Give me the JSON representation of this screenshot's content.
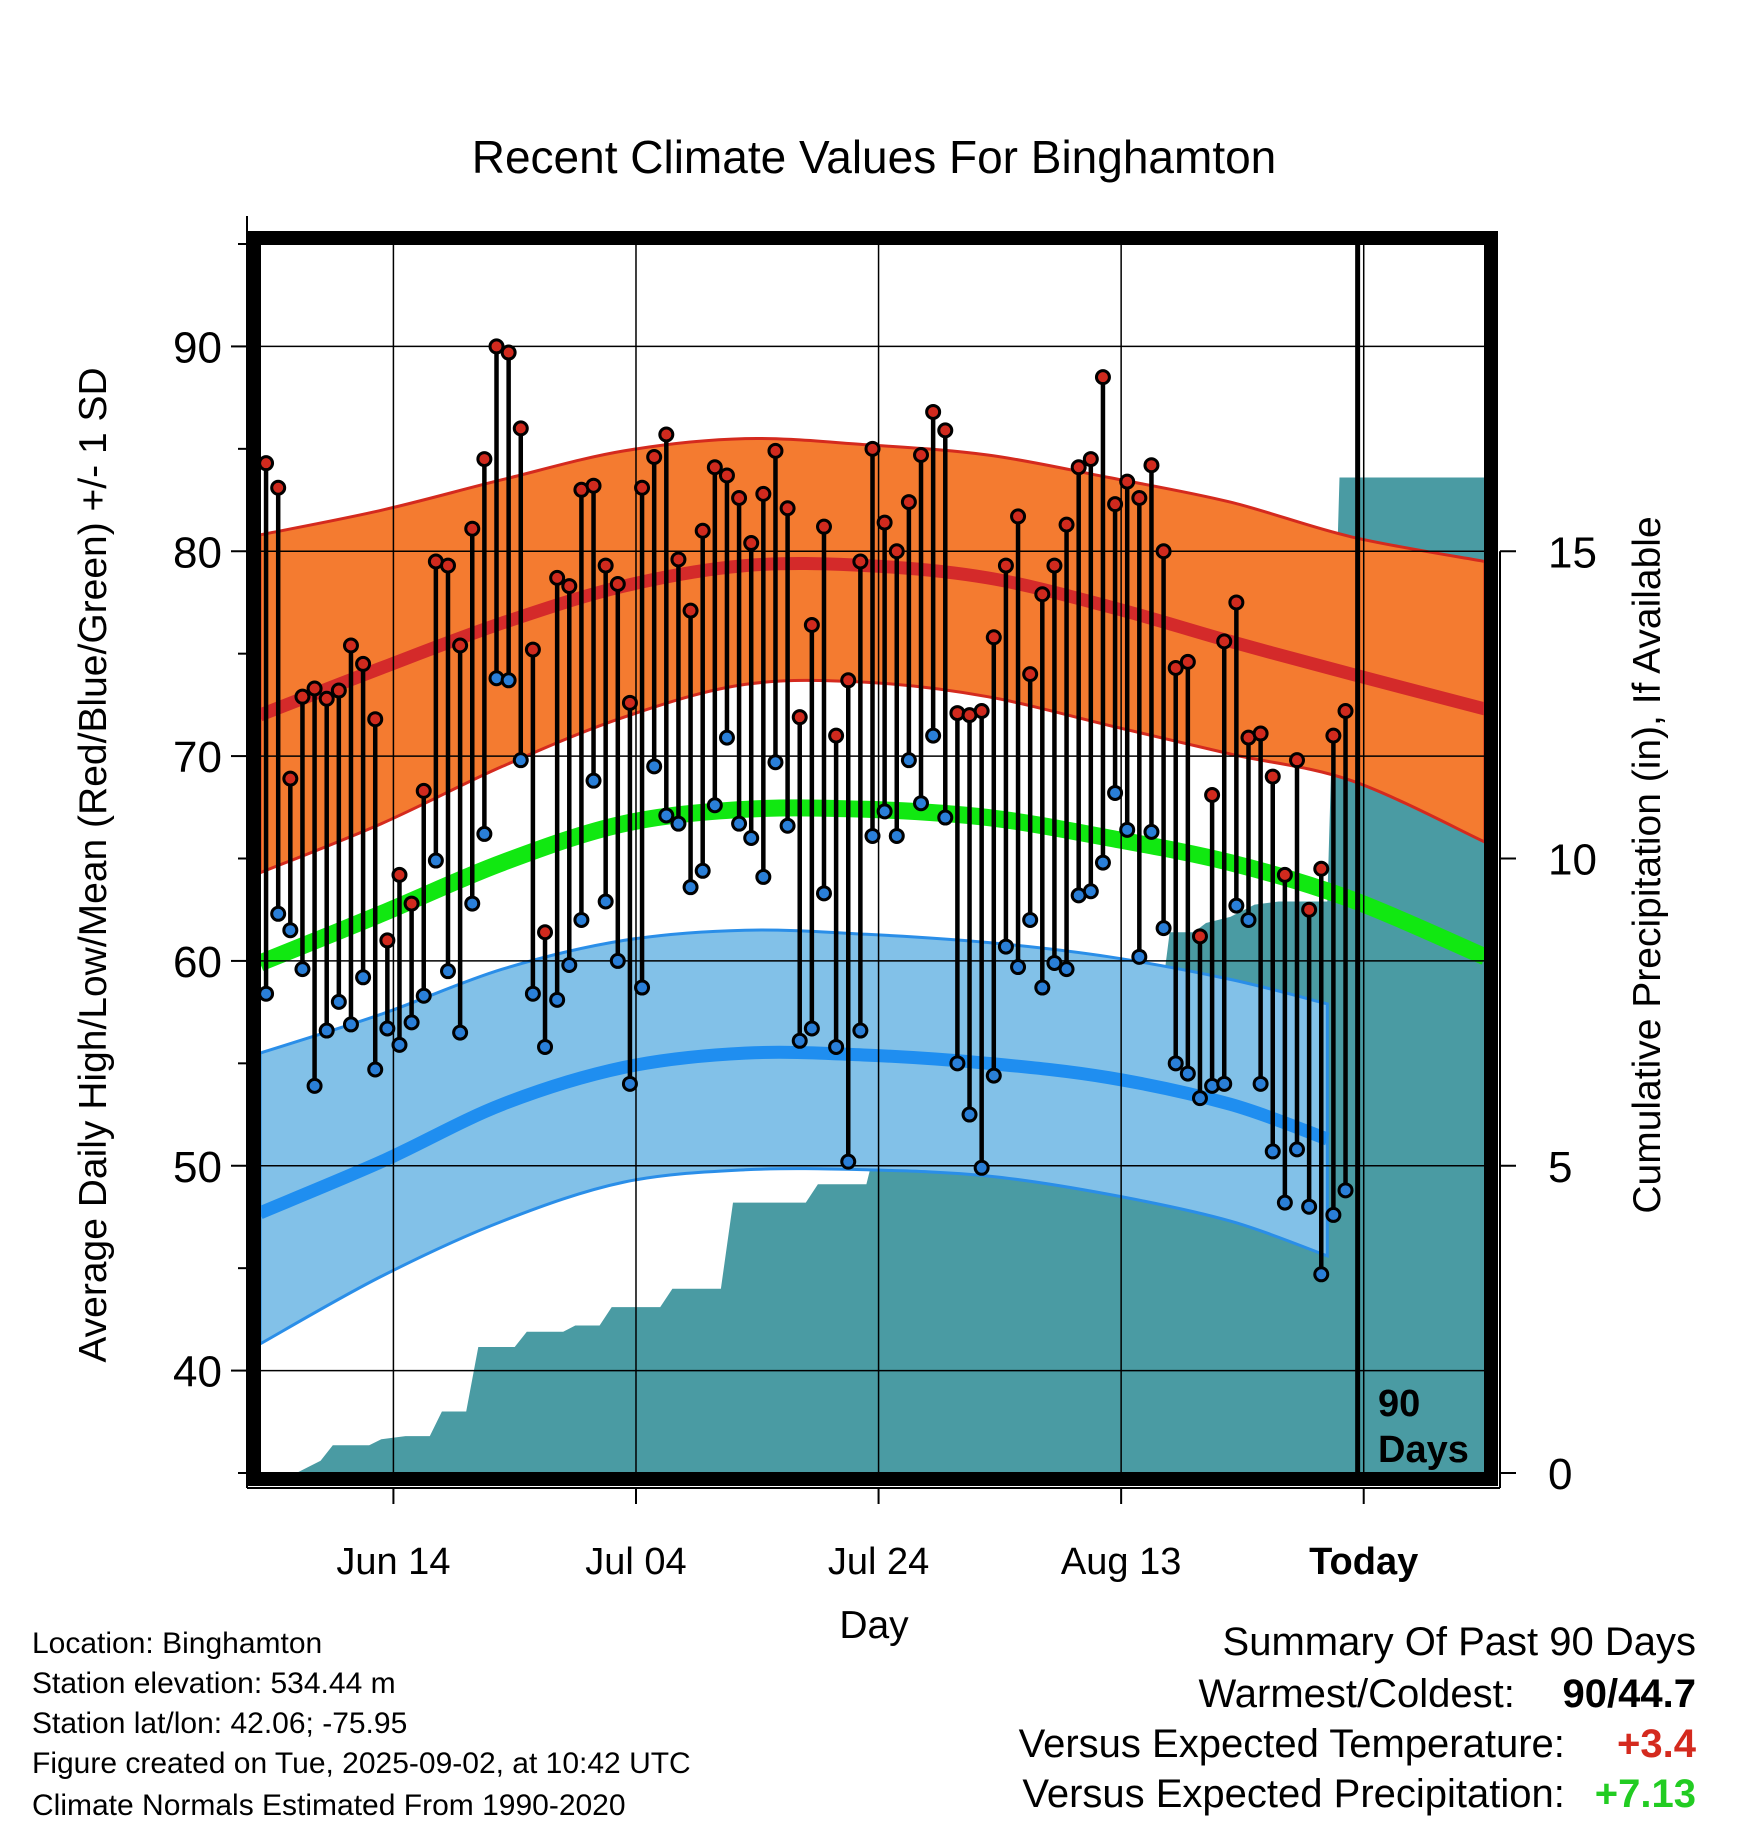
{
  "title": "Recent Climate Values For Binghamton",
  "colors": {
    "high_band": "#f47b30",
    "high_band_edge": "#d42a1e",
    "normal_high": "#d42a2a",
    "low_band": "#82c1e8",
    "low_band_edge": "#2a8ee8",
    "normal_low": "#1f8ef0",
    "normal_mean": "#11e811",
    "precip": "#4a9ba3",
    "high_marker": "#d02a1e",
    "low_marker": "#2a7fd8",
    "departure_temp": "#d42a1e",
    "departure_precip": "#22cc22"
  },
  "chart_data": {
    "type": "line",
    "title": "Recent Climate Values For Binghamton",
    "xlabel": "Day",
    "ylabel_left": "Average Daily High/Low/Mean (Red/Blue/Green) +/- 1 SD",
    "ylabel_right": "Cumulative Precipitation (in), If Available",
    "x_ticks": [
      "Jun 14",
      "Jul 04",
      "Jul 24",
      "Aug 13",
      "Today"
    ],
    "x_tick_days": [
      11,
      31,
      51,
      71,
      91
    ],
    "xlim": [
      0,
      101
    ],
    "ylim_left": [
      35,
      95
    ],
    "ylim_right": [
      0,
      20
    ],
    "yticks_left": [
      40,
      50,
      60,
      70,
      80,
      90
    ],
    "yticks_right": [
      0,
      5,
      10,
      15
    ],
    "today_day": 90.5,
    "today_label_line1": "90",
    "today_label_line2": "Days",
    "observed_high": [
      84.3,
      83.1,
      68.9,
      72.9,
      73.3,
      72.8,
      73.2,
      75.4,
      74.5,
      71.8,
      61.0,
      64.2,
      62.8,
      68.3,
      79.5,
      79.3,
      75.4,
      81.1,
      84.5,
      90.0,
      89.7,
      86.0,
      75.2,
      61.4,
      78.7,
      78.3,
      83.0,
      83.2,
      79.3,
      78.4,
      72.6,
      83.1,
      84.6,
      85.7,
      79.6,
      77.1,
      81.0,
      84.1,
      83.7,
      82.6,
      80.4,
      82.8,
      84.9,
      82.1,
      71.9,
      76.4,
      81.2,
      71.0,
      73.7,
      79.5,
      85.0,
      81.4,
      80.0,
      82.4,
      84.7,
      86.8,
      85.9,
      72.1,
      72.0,
      72.2,
      75.8,
      79.3,
      81.7,
      74.0,
      77.9,
      79.3,
      81.3,
      84.1,
      84.5,
      88.5,
      82.3,
      83.4,
      82.6,
      84.2,
      80.0,
      74.3,
      74.6,
      61.2,
      68.1,
      75.6,
      77.5,
      70.9,
      71.1,
      69.0,
      64.2,
      69.8,
      62.5,
      64.5,
      71.0,
      72.2
    ],
    "observed_low": [
      58.4,
      62.3,
      61.5,
      59.6,
      53.9,
      56.6,
      58.0,
      56.9,
      59.2,
      54.7,
      56.7,
      55.9,
      57.0,
      58.3,
      64.9,
      59.5,
      56.5,
      62.8,
      66.2,
      73.8,
      73.7,
      69.8,
      58.4,
      55.8,
      58.1,
      59.8,
      62.0,
      68.8,
      62.9,
      60.0,
      54.0,
      58.7,
      69.5,
      67.1,
      66.7,
      63.6,
      64.4,
      67.6,
      70.9,
      66.7,
      66.0,
      64.1,
      69.7,
      66.6,
      56.1,
      56.7,
      63.3,
      55.8,
      50.2,
      56.6,
      66.1,
      67.3,
      66.1,
      69.8,
      67.7,
      71.0,
      67.0,
      55.0,
      52.5,
      49.9,
      54.4,
      60.7,
      59.7,
      62.0,
      58.7,
      59.9,
      59.6,
      63.2,
      63.4,
      64.8,
      68.2,
      66.4,
      60.2,
      66.3,
      61.6,
      55.0,
      54.5,
      53.3,
      53.9,
      54.0,
      62.7,
      62.0,
      54.0,
      50.7,
      48.2,
      50.8,
      48.0,
      44.7,
      47.6,
      48.8
    ],
    "normal_high": [
      [
        0,
        72.0
      ],
      [
        10,
        74.3
      ],
      [
        20,
        76.5
      ],
      [
        30,
        78.3
      ],
      [
        40,
        79.3
      ],
      [
        50,
        79.3
      ],
      [
        60,
        78.7
      ],
      [
        70,
        77.3
      ],
      [
        80,
        75.6
      ],
      [
        90,
        74.0
      ],
      [
        101,
        72.3
      ]
    ],
    "normal_high_plus_sd": [
      [
        0,
        80.8
      ],
      [
        10,
        82.0
      ],
      [
        20,
        83.5
      ],
      [
        30,
        84.9
      ],
      [
        40,
        85.5
      ],
      [
        50,
        85.2
      ],
      [
        60,
        84.7
      ],
      [
        70,
        83.6
      ],
      [
        80,
        82.4
      ],
      [
        90,
        80.7
      ],
      [
        101,
        79.5
      ]
    ],
    "normal_high_minus_sd": [
      [
        0,
        64.3
      ],
      [
        10,
        66.7
      ],
      [
        20,
        69.5
      ],
      [
        30,
        71.9
      ],
      [
        40,
        73.5
      ],
      [
        50,
        73.6
      ],
      [
        60,
        72.9
      ],
      [
        70,
        71.5
      ],
      [
        80,
        70.1
      ],
      [
        90,
        68.8
      ],
      [
        101,
        65.8
      ]
    ],
    "normal_mean": [
      [
        0,
        59.9
      ],
      [
        10,
        62.3
      ],
      [
        20,
        64.8
      ],
      [
        30,
        66.7
      ],
      [
        40,
        67.4
      ],
      [
        50,
        67.4
      ],
      [
        60,
        67.0
      ],
      [
        70,
        66.0
      ],
      [
        80,
        64.8
      ],
      [
        90,
        63.0
      ],
      [
        101,
        60.2
      ]
    ],
    "normal_low": [
      [
        0,
        47.7
      ],
      [
        10,
        50.2
      ],
      [
        20,
        53.0
      ],
      [
        30,
        54.8
      ],
      [
        40,
        55.5
      ],
      [
        50,
        55.4
      ],
      [
        60,
        55.0
      ],
      [
        70,
        54.3
      ],
      [
        80,
        53.0
      ],
      [
        88,
        51.3
      ]
    ],
    "normal_low_plus_sd": [
      [
        0,
        55.5
      ],
      [
        10,
        57.4
      ],
      [
        20,
        59.6
      ],
      [
        30,
        61.0
      ],
      [
        40,
        61.5
      ],
      [
        50,
        61.3
      ],
      [
        60,
        60.9
      ],
      [
        70,
        60.2
      ],
      [
        80,
        59.1
      ],
      [
        88,
        57.9
      ]
    ],
    "normal_low_minus_sd": [
      [
        0,
        41.3
      ],
      [
        10,
        44.6
      ],
      [
        20,
        47.3
      ],
      [
        30,
        49.2
      ],
      [
        40,
        49.8
      ],
      [
        50,
        49.8
      ],
      [
        60,
        49.5
      ],
      [
        70,
        48.6
      ],
      [
        80,
        47.3
      ],
      [
        88,
        45.6
      ]
    ],
    "cumulative_precip": [
      [
        0,
        0.0
      ],
      [
        3,
        0.0
      ],
      [
        5,
        0.2
      ],
      [
        6,
        0.45
      ],
      [
        9,
        0.45
      ],
      [
        10,
        0.55
      ],
      [
        12,
        0.6
      ],
      [
        14,
        0.6
      ],
      [
        15,
        1.0
      ],
      [
        17,
        1.0
      ],
      [
        18,
        2.05
      ],
      [
        21,
        2.05
      ],
      [
        22,
        2.3
      ],
      [
        25,
        2.3
      ],
      [
        26,
        2.4
      ],
      [
        28,
        2.4
      ],
      [
        29,
        2.7
      ],
      [
        33,
        2.7
      ],
      [
        34,
        3.0
      ],
      [
        38,
        3.0
      ],
      [
        39,
        4.4
      ],
      [
        45,
        4.4
      ],
      [
        46,
        4.7
      ],
      [
        50,
        4.7
      ],
      [
        51,
        5.5
      ],
      [
        54,
        5.6
      ],
      [
        57,
        5.6
      ],
      [
        58,
        6.7
      ],
      [
        68,
        6.7
      ],
      [
        69,
        7.25
      ],
      [
        74,
        7.25
      ],
      [
        75,
        8.8
      ],
      [
        77,
        8.8
      ],
      [
        78,
        8.95
      ],
      [
        80,
        9.05
      ],
      [
        82,
        9.25
      ],
      [
        84,
        9.3
      ],
      [
        88,
        9.3
      ],
      [
        89,
        16.2
      ],
      [
        101,
        16.2
      ]
    ]
  },
  "info": {
    "location": "Location: Binghamton",
    "elevation": "Station elevation: 534.44 m",
    "latlon": "Station lat/lon: 42.06; -75.95",
    "created": "Figure created on Tue, 2025-09-02, at 10:42 UTC",
    "normals": "Climate Normals Estimated From 1990-2020"
  },
  "summary": {
    "heading": "Summary Of Past 90 Days",
    "warmest_label": "Warmest/Coldest:",
    "warmest_value": "90/44.7",
    "temp_label": "Versus Expected Temperature:",
    "temp_value": "+3.4",
    "precip_label": "Versus Expected Precipitation:",
    "precip_value": "+7.13"
  }
}
